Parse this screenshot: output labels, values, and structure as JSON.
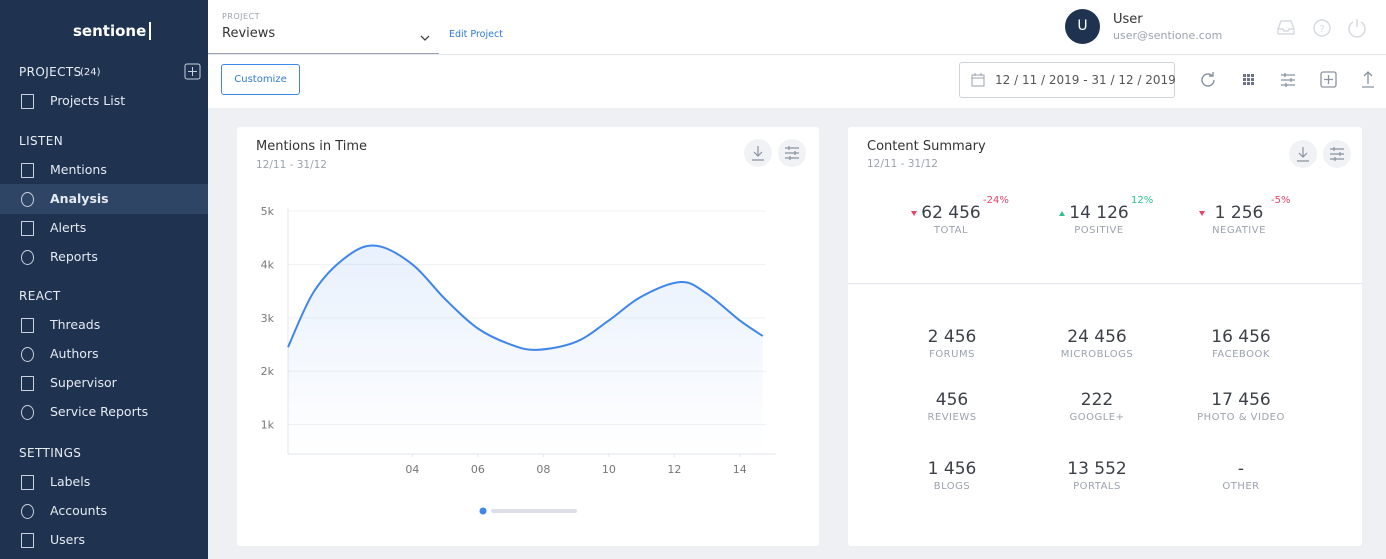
{
  "sidebar": {
    "logo": "sentione",
    "sections": [
      {
        "title": "PROJECTS",
        "count": "(24)",
        "items": [
          "Projects List"
        ]
      },
      {
        "title": "LISTEN",
        "items": [
          "Mentions",
          "Analysis",
          "Alerts",
          "Reports"
        ]
      },
      {
        "title": "REACT",
        "items": [
          "Threads",
          "Authors",
          "Supervisor",
          "Service Reports"
        ]
      },
      {
        "title": "SETTINGS",
        "items": [
          "Labels",
          "Accounts",
          "Users"
        ]
      }
    ]
  },
  "header": {
    "project_label": "PROJECT",
    "project_name": "Reviews",
    "edit": "Edit Project",
    "avatar": "U",
    "user_name": "User",
    "user_email": "user@sentione.com"
  },
  "toolbar": {
    "customize": "Customize",
    "date_range": "12 / 11 / 2019 - 31 / 12 / 2019"
  },
  "chart_data": {
    "type": "line",
    "title": "Mentions in Time",
    "subtitle": "12/11  - 31/12",
    "x": [
      0.2,
      1,
      2,
      2.9,
      4,
      5,
      6,
      7,
      7.8,
      9,
      10,
      11,
      12.2,
      13,
      14,
      14.7
    ],
    "series": [
      {
        "color": "#3f86ea",
        "values": [
          2450,
          3500,
          4150,
          4350,
          4000,
          3350,
          2800,
          2500,
          2400,
          2550,
          2950,
          3400,
          3670,
          3450,
          2950,
          2660
        ]
      }
    ],
    "xlim": [
      0.2,
      14.8
    ],
    "ylim": [
      450,
      5000
    ],
    "xticks": [
      {
        "value": 4,
        "label": "04"
      },
      {
        "value": 6,
        "label": "06"
      },
      {
        "value": 8,
        "label": "08"
      },
      {
        "value": 10,
        "label": "10"
      },
      {
        "value": 12,
        "label": "12"
      },
      {
        "value": 14,
        "label": "14"
      }
    ],
    "yticks": [
      {
        "value": 1000,
        "label": "1k"
      },
      {
        "value": 2000,
        "label": "2k"
      },
      {
        "value": 3000,
        "label": "3k"
      },
      {
        "value": 4000,
        "label": "4k"
      },
      {
        "value": 5000,
        "label": "5k"
      }
    ],
    "grid": true
  },
  "summary": {
    "title": "Content Summary",
    "subtitle": "12/11  - 31/12",
    "stats": [
      {
        "value": "62 456",
        "change": "-24%",
        "label": "TOTAL",
        "trend": "down"
      },
      {
        "value": "14 126",
        "change": "12%",
        "label": "POSITIVE",
        "trend": "up"
      },
      {
        "value": "1 256",
        "change": "-5%",
        "label": "NEGATIVE",
        "trend": "down"
      }
    ],
    "sources": [
      {
        "value": "2 456",
        "label": "FORUMS"
      },
      {
        "value": "24 456",
        "label": "MICROBLOGS"
      },
      {
        "value": "16 456",
        "label": "FACEBOOK"
      },
      {
        "value": "456",
        "label": "REVIEWS"
      },
      {
        "value": "222",
        "label": "GOOGLE+"
      },
      {
        "value": "17 456",
        "label": "PHOTO & VIDEO"
      },
      {
        "value": "1 456",
        "label": "BLOGS"
      },
      {
        "value": "13 552",
        "label": "PORTALS"
      },
      {
        "value": "-",
        "label": "OTHER"
      }
    ]
  }
}
